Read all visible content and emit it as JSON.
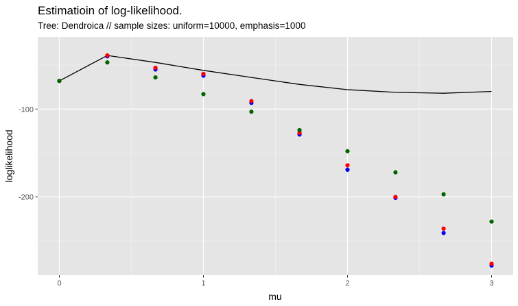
{
  "chart_data": {
    "type": "scatter",
    "title": "Estimatioin of log-likelihood.",
    "subtitle": "Tree: Dendroica // sample sizes: uniform=10000, emphasis=1000",
    "xlabel": "mu",
    "ylabel": "loglikelihood",
    "xlim": [
      -0.15,
      3.15
    ],
    "ylim": [
      -289,
      -18
    ],
    "xticks": [
      0,
      1,
      2,
      3
    ],
    "xtick_labels": [
      "0",
      "1",
      "2",
      "3"
    ],
    "yticks": [
      -100,
      -200
    ],
    "ytick_labels": [
      "-100",
      "-200"
    ],
    "grid": true,
    "legend": "none",
    "colors": {
      "panel": "#e5e5e5",
      "grid": "#ffffff",
      "line": "#000000"
    },
    "x": [
      0,
      0.333,
      0.667,
      1,
      1.333,
      1.667,
      2,
      2.333,
      2.667,
      3
    ],
    "line": {
      "values": [
        -68,
        -39,
        -47,
        -56,
        -64,
        -72,
        -78,
        -81,
        -82,
        -80
      ]
    },
    "series": [
      {
        "color": "#0000ff",
        "values": [
          -68,
          -40,
          -55,
          -62,
          -93,
          -129,
          -169,
          -201,
          -241,
          -278
        ]
      },
      {
        "color": "#ff0000",
        "values": [
          -68,
          -39,
          -53,
          -60,
          -91,
          -127,
          -164,
          -200,
          -236,
          -276
        ]
      },
      {
        "color": "#006400",
        "values": [
          -68,
          -47,
          -64,
          -83,
          -103,
          -124,
          -148,
          -172,
          -197,
          -228
        ]
      }
    ]
  }
}
